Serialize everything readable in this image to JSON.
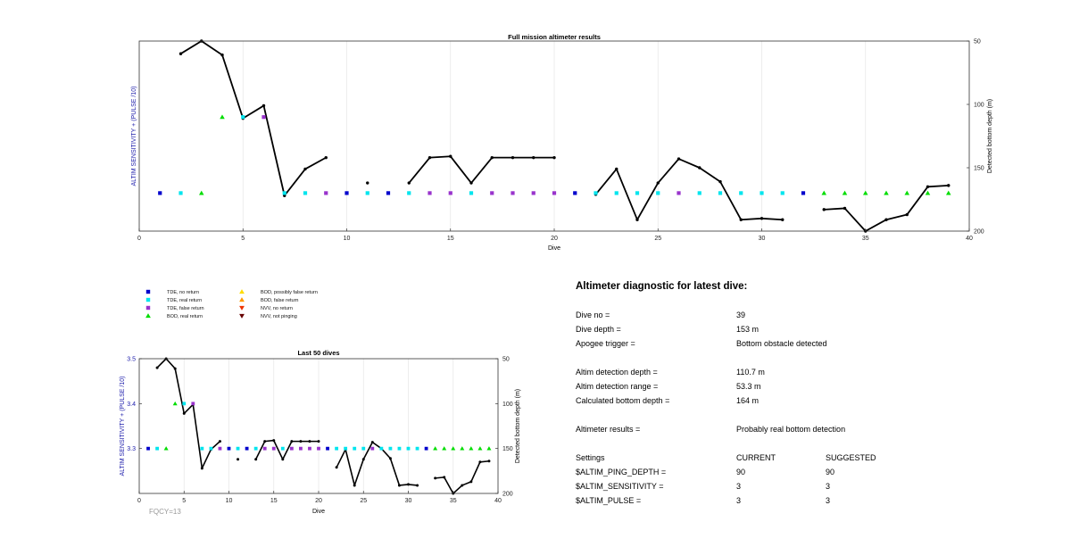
{
  "colors": {
    "tde_no_return": "#0000cc",
    "tde_real_return": "#00e5ee",
    "tde_false_return": "#9933cc",
    "bod_real_return": "#00dd00",
    "bod_possibly_false_return": "#ffdd00",
    "bod_false_return": "#ff9900",
    "nvv_no_return": "#ee3300",
    "nvv_not_pinging": "#660000",
    "left_axis_label": "#1a1aaa",
    "fqcy_label": "#999999"
  },
  "legend": [
    {
      "label": "TDE, no return",
      "marker": "square",
      "color": "#0000cc"
    },
    {
      "label": "TDE, real return",
      "marker": "square",
      "color": "#00e5ee"
    },
    {
      "label": "TDE, false return",
      "marker": "square",
      "color": "#9933cc"
    },
    {
      "label": "BOD, real return",
      "marker": "triangle-up",
      "color": "#00dd00"
    },
    {
      "label": "BOD, possibly false return",
      "marker": "triangle-up",
      "color": "#ffdd00"
    },
    {
      "label": "BOD, false return",
      "marker": "triangle-up",
      "color": "#ff9900"
    },
    {
      "label": "NVV, no return",
      "marker": "triangle-down",
      "color": "#ee3300"
    },
    {
      "label": "NVV, not pinging",
      "marker": "triangle-down",
      "color": "#660000"
    }
  ],
  "chart_data": [
    {
      "id": "full",
      "type": "scatter",
      "title": "Full mission altimeter results",
      "xlabel": "Dive",
      "ylabel_left": "ALTIM SENSITIVITY + (PULSE /10)",
      "ylabel_right": "Detected bottom depth (m)",
      "xlim": [
        0,
        40
      ],
      "ylim_left": [
        3.25,
        3.5
      ],
      "ylim_right": [
        200,
        50
      ],
      "right_reversed": true,
      "x_ticks": [
        0,
        5,
        10,
        15,
        20,
        25,
        30,
        35,
        40
      ],
      "y_ticks_left": [],
      "y_ticks_right": [
        50,
        100,
        150,
        200
      ],
      "grid": "vertical",
      "setting_series": {
        "x": [
          1,
          2,
          3,
          4,
          5,
          6,
          7,
          8,
          9,
          10,
          11,
          12,
          13,
          14,
          15,
          16,
          17,
          18,
          19,
          20,
          21,
          22,
          23,
          24,
          25,
          26,
          27,
          28,
          29,
          30,
          31,
          32,
          33,
          34,
          35,
          36,
          37,
          38,
          39
        ],
        "y": [
          3.3,
          3.3,
          3.3,
          3.4,
          3.4,
          3.4,
          3.3,
          3.3,
          3.3,
          3.3,
          3.3,
          3.3,
          3.3,
          3.3,
          3.3,
          3.3,
          3.3,
          3.3,
          3.3,
          3.3,
          3.3,
          3.3,
          3.3,
          3.3,
          3.3,
          3.3,
          3.3,
          3.3,
          3.3,
          3.3,
          3.3,
          3.3,
          3.3,
          3.3,
          3.3,
          3.3,
          3.3,
          3.3,
          3.3
        ],
        "category": [
          "tde_no_return",
          "tde_real_return",
          "bod_real_return",
          "bod_real_return",
          "tde_real_return",
          "tde_false_return",
          "tde_real_return",
          "tde_real_return",
          "tde_false_return",
          "tde_no_return",
          "tde_real_return",
          "tde_no_return",
          "tde_real_return",
          "tde_false_return",
          "tde_false_return",
          "tde_real_return",
          "tde_false_return",
          "tde_false_return",
          "tde_false_return",
          "tde_false_return",
          "tde_no_return",
          "tde_real_return",
          "tde_real_return",
          "tde_real_return",
          "tde_real_return",
          "tde_false_return",
          "tde_real_return",
          "tde_real_return",
          "tde_real_return",
          "tde_real_return",
          "tde_real_return",
          "tde_no_return",
          "bod_real_return",
          "bod_real_return",
          "bod_real_return",
          "bod_real_return",
          "bod_real_return",
          "bod_real_return",
          "bod_real_return"
        ]
      },
      "depth_series": {
        "x": [
          2,
          3,
          4,
          5,
          6,
          7,
          8,
          9,
          10,
          11,
          12,
          13,
          14,
          15,
          16,
          17,
          18,
          19,
          20,
          21,
          22,
          23,
          24,
          25,
          26,
          27,
          28,
          29,
          30,
          31,
          32,
          33,
          34,
          35,
          36,
          37,
          38,
          39
        ],
        "y": [
          60,
          50,
          61,
          111,
          101,
          172,
          151,
          142,
          null,
          162,
          null,
          162,
          142,
          141,
          162,
          142,
          142,
          142,
          142,
          null,
          171,
          151,
          191,
          162,
          143,
          150,
          161,
          191,
          190,
          191,
          null,
          183,
          182,
          200,
          191,
          187,
          165,
          164
        ]
      }
    },
    {
      "id": "last50",
      "type": "scatter",
      "title": "Last 50 dives",
      "xlabel": "Dive",
      "ylabel_left": "ALTIM SENSITIVITY + (PULSE /10)",
      "ylabel_right": "Detected bottom depth (m)",
      "xlim": [
        0,
        40
      ],
      "ylim_left": [
        3.2,
        3.5
      ],
      "ylim_right": [
        200,
        50
      ],
      "right_reversed": true,
      "x_ticks": [
        0,
        5,
        10,
        15,
        20,
        25,
        30,
        35,
        40
      ],
      "y_ticks_left": [
        3.3,
        3.4,
        3.5
      ],
      "y_ticks_right": [
        50,
        100,
        150,
        200
      ],
      "grid": "vertical",
      "setting_series": {
        "x": [
          1,
          2,
          3,
          4,
          5,
          6,
          7,
          8,
          9,
          10,
          11,
          12,
          13,
          14,
          15,
          16,
          17,
          18,
          19,
          20,
          21,
          22,
          23,
          24,
          25,
          26,
          27,
          28,
          29,
          30,
          31,
          32,
          33,
          34,
          35,
          36,
          37,
          38,
          39
        ],
        "y": [
          3.3,
          3.3,
          3.3,
          3.4,
          3.4,
          3.4,
          3.3,
          3.3,
          3.3,
          3.3,
          3.3,
          3.3,
          3.3,
          3.3,
          3.3,
          3.3,
          3.3,
          3.3,
          3.3,
          3.3,
          3.3,
          3.3,
          3.3,
          3.3,
          3.3,
          3.3,
          3.3,
          3.3,
          3.3,
          3.3,
          3.3,
          3.3,
          3.3,
          3.3,
          3.3,
          3.3,
          3.3,
          3.3,
          3.3
        ],
        "category": [
          "tde_no_return",
          "tde_real_return",
          "bod_real_return",
          "bod_real_return",
          "tde_real_return",
          "tde_false_return",
          "tde_real_return",
          "tde_real_return",
          "tde_false_return",
          "tde_no_return",
          "tde_real_return",
          "tde_no_return",
          "tde_real_return",
          "tde_false_return",
          "tde_false_return",
          "tde_real_return",
          "tde_false_return",
          "tde_false_return",
          "tde_false_return",
          "tde_false_return",
          "tde_no_return",
          "tde_real_return",
          "tde_real_return",
          "tde_real_return",
          "tde_real_return",
          "tde_false_return",
          "tde_real_return",
          "tde_real_return",
          "tde_real_return",
          "tde_real_return",
          "tde_real_return",
          "tde_no_return",
          "bod_real_return",
          "bod_real_return",
          "bod_real_return",
          "bod_real_return",
          "bod_real_return",
          "bod_real_return",
          "bod_real_return"
        ]
      },
      "depth_series": {
        "x": [
          2,
          3,
          4,
          5,
          6,
          7,
          8,
          9,
          10,
          11,
          12,
          13,
          14,
          15,
          16,
          17,
          18,
          19,
          20,
          21,
          22,
          23,
          24,
          25,
          26,
          27,
          28,
          29,
          30,
          31,
          32,
          33,
          34,
          35,
          36,
          37,
          38,
          39
        ],
        "y": [
          60,
          50,
          61,
          111,
          101,
          172,
          151,
          142,
          null,
          162,
          null,
          162,
          142,
          141,
          162,
          142,
          142,
          142,
          142,
          null,
          171,
          151,
          191,
          162,
          143,
          150,
          161,
          191,
          190,
          191,
          null,
          183,
          182,
          200,
          191,
          187,
          165,
          164
        ]
      },
      "note": "FQCY=13"
    }
  ],
  "diagnostic": {
    "title": "Altimeter diagnostic for latest dive:",
    "rows": [
      {
        "label": "Dive no =",
        "value": "39"
      },
      {
        "label": "Dive depth =",
        "value": "153 m"
      },
      {
        "label": "Apogee trigger =",
        "value": "Bottom obstacle detected"
      },
      {
        "label": "Altim detection depth =",
        "value": "110.7 m"
      },
      {
        "label": "Altim detection range =",
        "value": "53.3 m"
      },
      {
        "label": "Calculated bottom depth =",
        "value": "164 m"
      },
      {
        "label": "Altimeter results =",
        "value": "Probably real bottom detection"
      }
    ],
    "settings_header": {
      "label": "Settings",
      "current": "CURRENT",
      "suggested": "SUGGESTED"
    },
    "settings": [
      {
        "name": "$ALTIM_PING_DEPTH =",
        "current": "90",
        "suggested": "90"
      },
      {
        "name": "$ALTIM_SENSITIVITY =",
        "current": "3",
        "suggested": "3"
      },
      {
        "name": "$ALTIM_PULSE =",
        "current": "3",
        "suggested": "3"
      }
    ]
  }
}
